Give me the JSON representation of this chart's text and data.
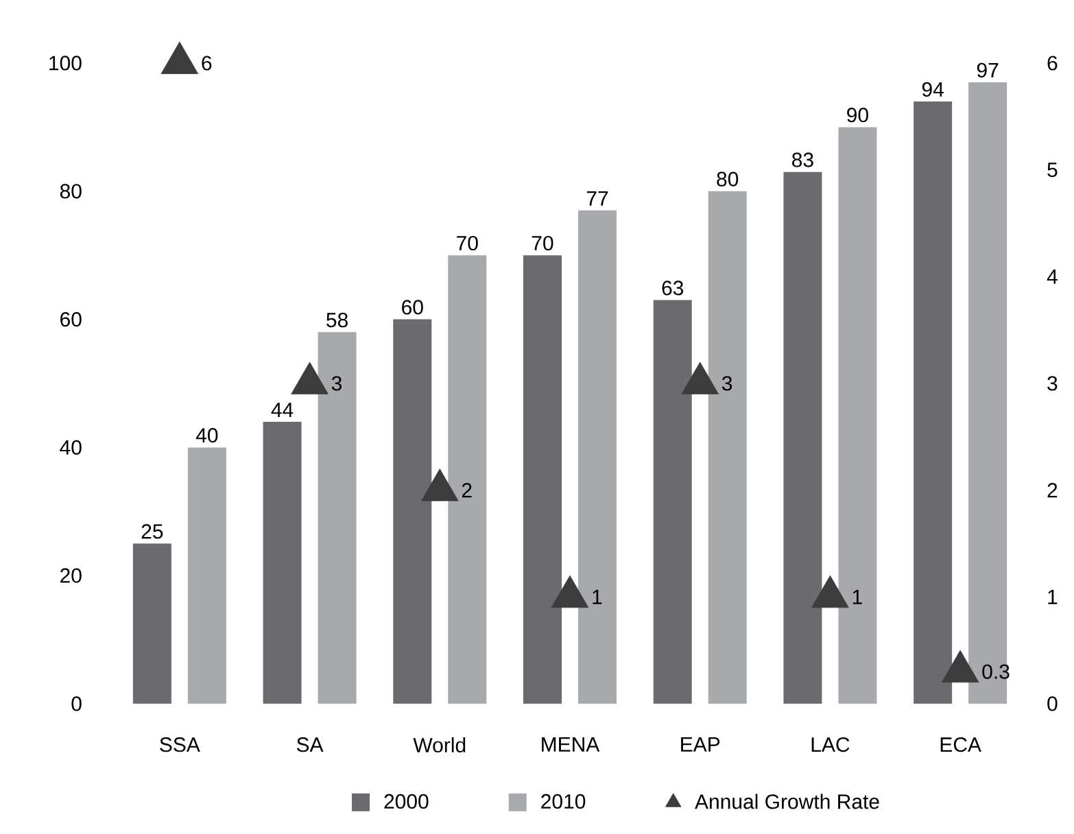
{
  "chart_data": {
    "type": "bar",
    "categories": [
      "SSA",
      "SA",
      "World",
      "MENA",
      "EAP",
      "LAC",
      "ECA"
    ],
    "series": [
      {
        "name": "2000",
        "color": "#6b6b6f",
        "values": [
          25,
          44,
          60,
          70,
          63,
          83,
          94
        ]
      },
      {
        "name": "2010",
        "color": "#a8a9ad",
        "values": [
          40,
          58,
          70,
          77,
          80,
          90,
          97
        ]
      },
      {
        "name": "Annual Growth Rate",
        "type": "scatter",
        "axis": "y2",
        "marker": "triangle",
        "color": "#3c3c3c",
        "x": [
          "SSA",
          "SA",
          "World",
          "MENA",
          "EAP",
          "LAC",
          "ECA"
        ],
        "values": [
          6,
          3,
          2,
          1,
          3,
          1,
          0.3
        ]
      }
    ],
    "ylim": [
      0,
      100
    ],
    "yticks": [
      0,
      20,
      40,
      60,
      80,
      100
    ],
    "y2lim": [
      0,
      6
    ],
    "y2ticks": [
      0,
      1,
      2,
      3,
      4,
      5,
      6
    ],
    "data_labels": true,
    "legend": "bottom"
  }
}
